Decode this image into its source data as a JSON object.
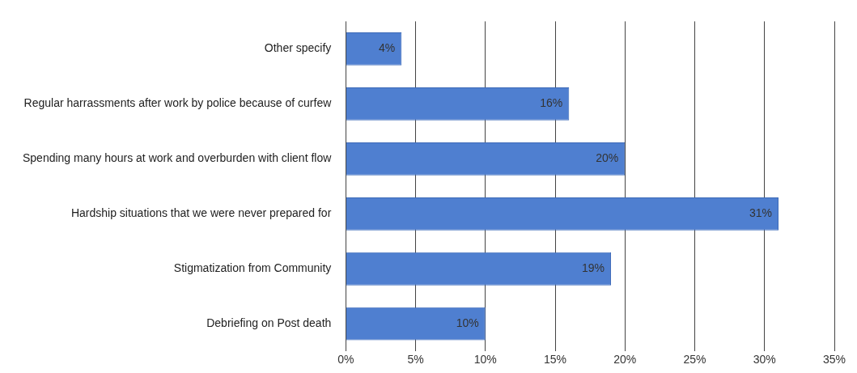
{
  "chart_data": {
    "type": "bar",
    "orientation": "horizontal",
    "categories": [
      "Other specify",
      "Regular harrassments after work by police because of curfew",
      "Spending many hours at work and overburden with client flow",
      "Hardship situations that we were never prepared for",
      "Stigmatization from Community",
      "Debriefing on Post death"
    ],
    "values": [
      4,
      16,
      20,
      31,
      19,
      10
    ],
    "value_labels": [
      "4%",
      "16%",
      "20%",
      "31%",
      "19%",
      "10%"
    ],
    "color": "#4f7fd0",
    "xlim": [
      0,
      35
    ],
    "xticks": [
      {
        "value": 0,
        "label": "0%"
      },
      {
        "value": 5,
        "label": "5%"
      },
      {
        "value": 10,
        "label": "10%"
      },
      {
        "value": 15,
        "label": "15%"
      },
      {
        "value": 20,
        "label": "20%"
      },
      {
        "value": 25,
        "label": "25%"
      },
      {
        "value": 30,
        "label": "30%"
      },
      {
        "value": 35,
        "label": "35%"
      }
    ],
    "grid": "x"
  }
}
